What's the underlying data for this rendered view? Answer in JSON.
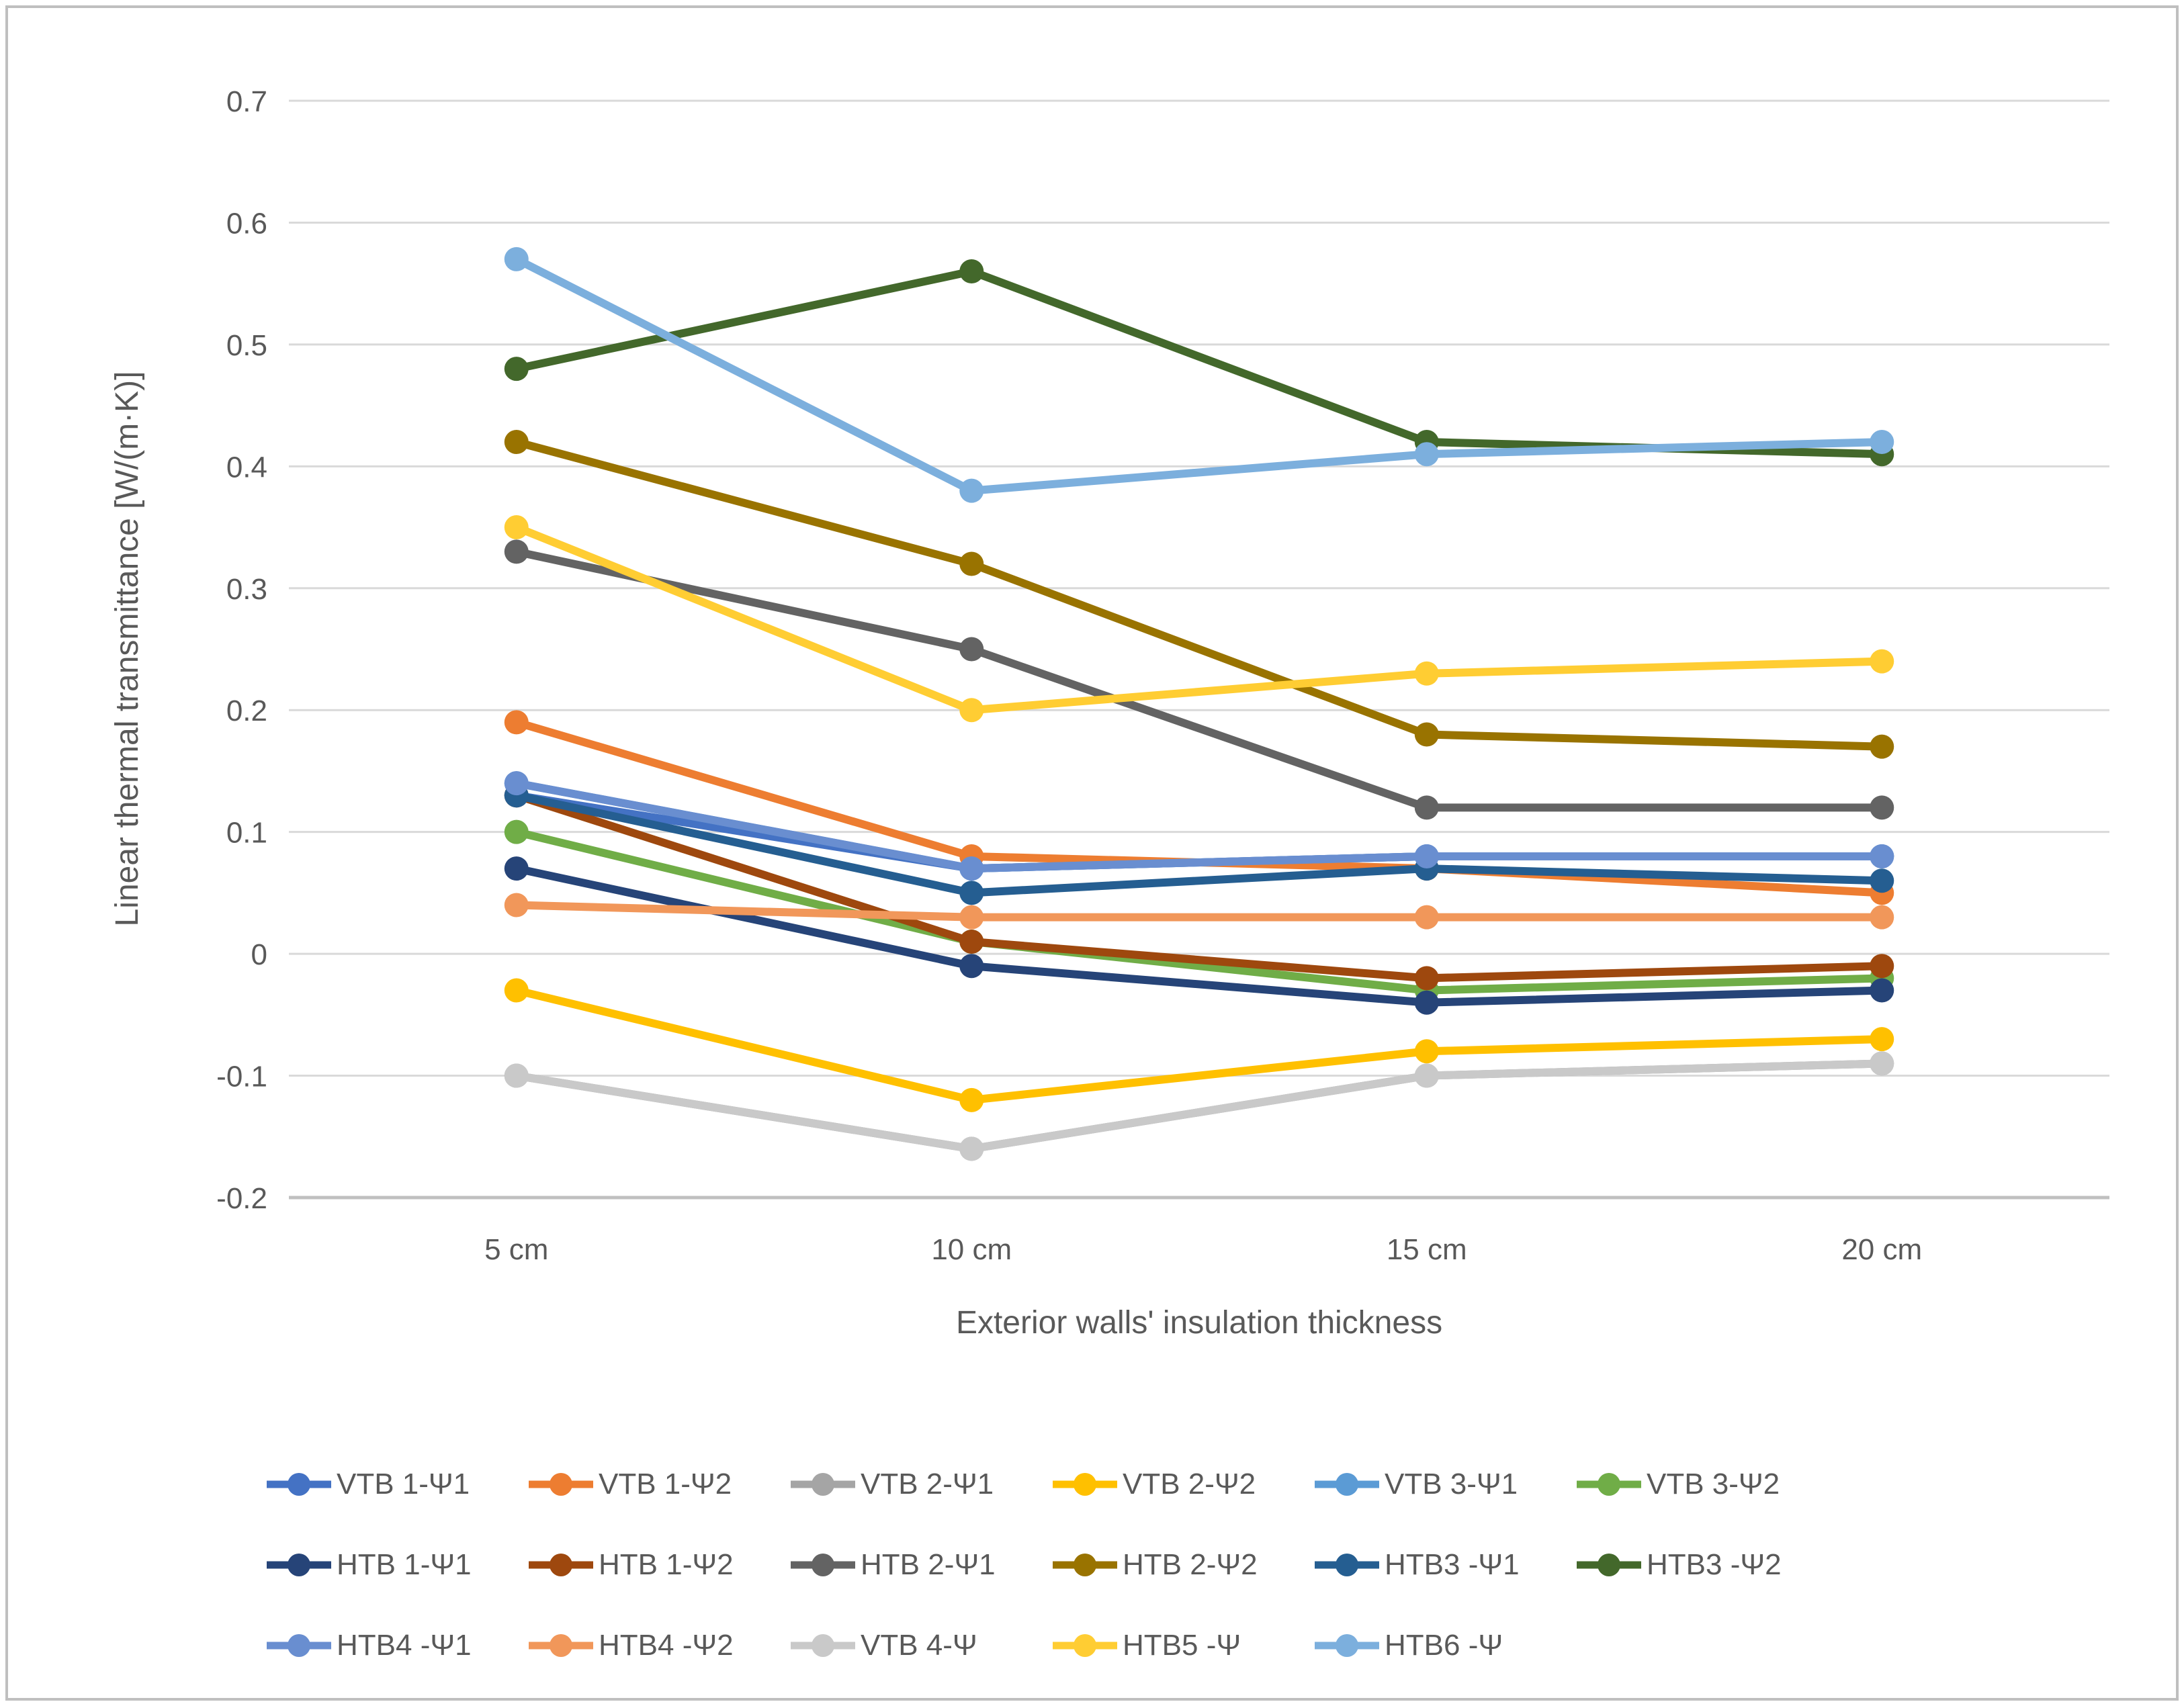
{
  "style": {
    "background": "#ffffff",
    "frame_border_color": "#bfbfbf",
    "text_color": "#595959",
    "grid_color": "#d9d9d9",
    "axis_line_color": "#c0c0c0"
  },
  "chart_data": {
    "type": "line",
    "title": "",
    "xlabel": "Exterior walls' insulation thickness",
    "ylabel": "Linear thermal transmittance [W/(m·K)]",
    "categories": [
      "5 cm",
      "10 cm",
      "15 cm",
      "20 cm"
    ],
    "ylim": [
      -0.2,
      0.7
    ],
    "ytick_step": 0.1,
    "ytick_labels": [
      "0.7",
      "0.6",
      "0.5",
      "0.4",
      "0.3",
      "0.2",
      "0.1",
      "0",
      "-0.1",
      "-0.2"
    ],
    "grid": true,
    "legend_position": "bottom",
    "legend_rows": [
      6,
      6,
      5
    ],
    "series": [
      {
        "name": "VTB 1-Ψ1",
        "color": "#4472C4",
        "values": [
          0.13,
          0.07,
          0.08,
          0.08
        ]
      },
      {
        "name": "VTB 1-Ψ2",
        "color": "#ED7D31",
        "values": [
          0.19,
          0.08,
          0.07,
          0.05
        ]
      },
      {
        "name": "VTB 2-Ψ1",
        "color": "#A5A5A5",
        "values": [
          -0.1,
          -0.16,
          -0.1,
          -0.09
        ]
      },
      {
        "name": "VTB 2-Ψ2",
        "color": "#FFC000",
        "values": [
          -0.03,
          -0.12,
          -0.08,
          -0.07
        ]
      },
      {
        "name": "VTB 3-Ψ1",
        "color": "#5B9BD5",
        "values": [
          0.14,
          0.07,
          0.08,
          0.08
        ]
      },
      {
        "name": "VTB 3-Ψ2",
        "color": "#70AD47",
        "values": [
          0.1,
          0.01,
          -0.03,
          -0.02
        ]
      },
      {
        "name": "HTB 1-Ψ1",
        "color": "#264478",
        "values": [
          0.07,
          -0.01,
          -0.04,
          -0.03
        ]
      },
      {
        "name": "HTB 1-Ψ2",
        "color": "#9E480E",
        "values": [
          0.13,
          0.01,
          -0.02,
          -0.01
        ]
      },
      {
        "name": "HTB 2-Ψ1",
        "color": "#636363",
        "values": [
          0.33,
          0.25,
          0.12,
          0.12
        ]
      },
      {
        "name": "HTB 2-Ψ2",
        "color": "#997300",
        "values": [
          0.42,
          0.32,
          0.18,
          0.17
        ]
      },
      {
        "name": "HTB3 -Ψ1",
        "color": "#255E91",
        "values": [
          0.13,
          0.05,
          0.07,
          0.06
        ]
      },
      {
        "name": "HTB3 -Ψ2",
        "color": "#43682B",
        "values": [
          0.48,
          0.56,
          0.42,
          0.41
        ]
      },
      {
        "name": "HTB4 -Ψ1",
        "color": "#698ED0",
        "values": [
          0.14,
          0.07,
          0.08,
          0.08
        ]
      },
      {
        "name": "HTB4 -Ψ2",
        "color": "#F1975A",
        "values": [
          0.04,
          0.03,
          0.03,
          0.03
        ]
      },
      {
        "name": "VTB 4-Ψ",
        "color": "#C9C9C9",
        "values": [
          -0.1,
          -0.16,
          -0.1,
          -0.09
        ]
      },
      {
        "name": "HTB5 -Ψ",
        "color": "#FFCD33",
        "values": [
          0.35,
          0.2,
          0.23,
          0.24
        ]
      },
      {
        "name": "HTB6 -Ψ",
        "color": "#7CAFDD",
        "values": [
          0.57,
          0.38,
          0.41,
          0.42
        ]
      }
    ]
  }
}
